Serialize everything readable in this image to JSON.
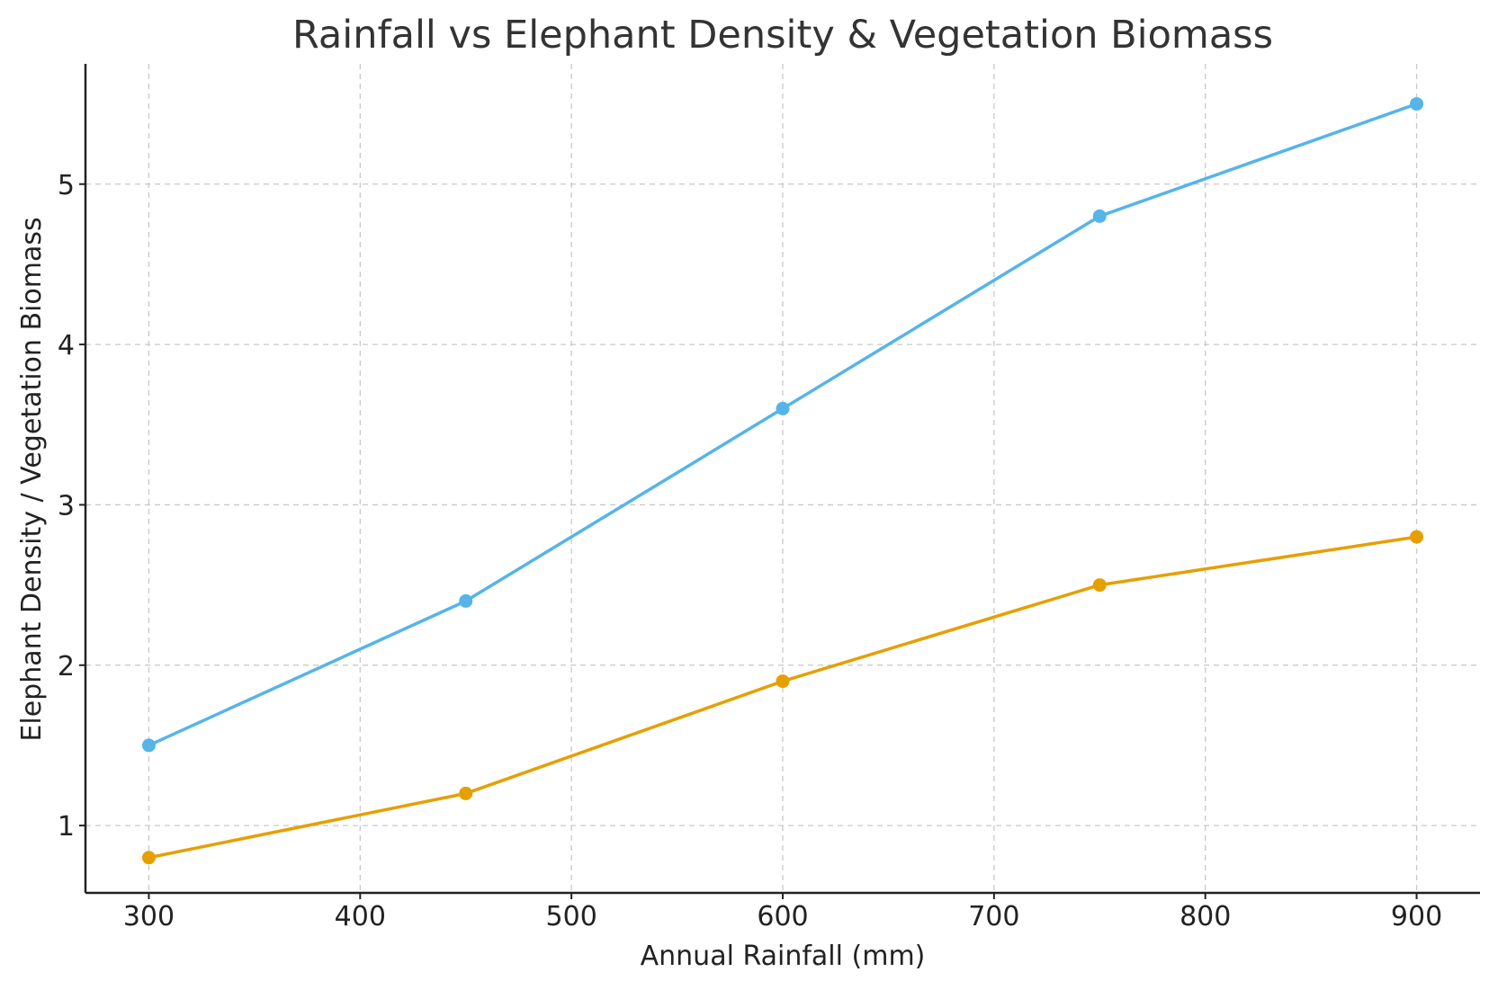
{
  "chart_data": {
    "type": "line",
    "title": "Rainfall vs Elephant Density & Vegetation Biomass",
    "xlabel": "Annual Rainfall (mm)",
    "ylabel": "Elephant Density / Vegetation Biomass",
    "x": [
      300,
      450,
      600,
      750,
      900
    ],
    "xlim": [
      270,
      930
    ],
    "ylim": [
      0.58,
      5.75
    ],
    "xticks": [
      300,
      400,
      500,
      600,
      700,
      800,
      900
    ],
    "yticks": [
      1,
      2,
      3,
      4,
      5
    ],
    "grid": true,
    "legend": "none",
    "series": [
      {
        "values": [
          1.5,
          2.4,
          3.6,
          4.8,
          5.5
        ],
        "color": "#56b4e9"
      },
      {
        "values": [
          0.8,
          1.2,
          1.9,
          2.5,
          2.8
        ],
        "color": "#e69f00"
      }
    ]
  }
}
